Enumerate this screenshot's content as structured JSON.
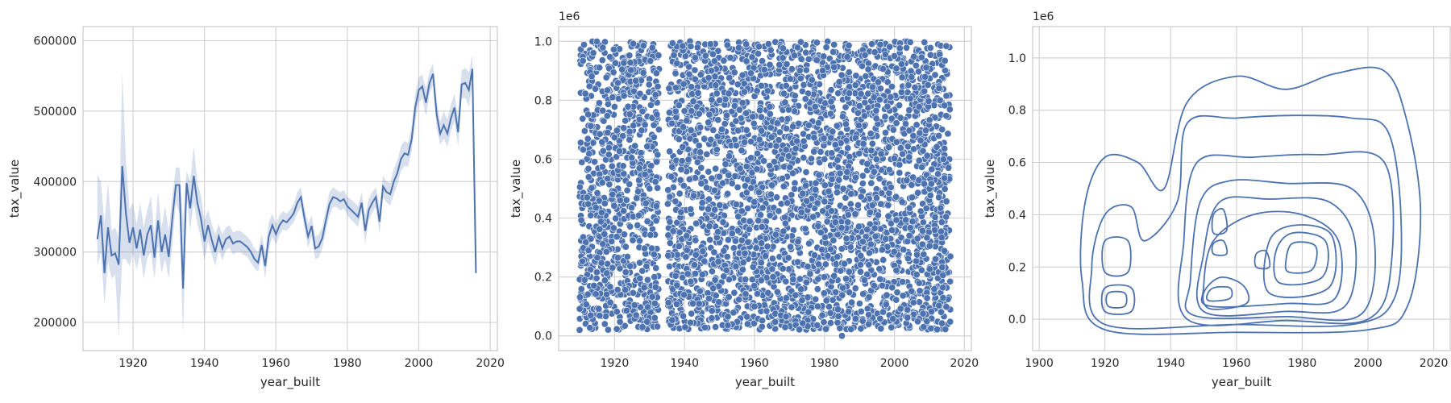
{
  "chart_data": [
    {
      "type": "line",
      "xlabel": "year_built",
      "ylabel": "tax_value",
      "xlim": [
        1906,
        2022
      ],
      "ylim": [
        160000,
        620000
      ],
      "xticks": [
        1920,
        1940,
        1960,
        1980,
        2000,
        2020
      ],
      "yticks": [
        200000,
        300000,
        400000,
        500000,
        600000
      ],
      "x_tick_labels": [
        "1920",
        "1940",
        "1960",
        "1980",
        "2000",
        "2020"
      ],
      "y_tick_labels": [
        "200000",
        "300000",
        "400000",
        "500000",
        "600000"
      ],
      "grid": true,
      "line_color": "#4c72b0",
      "band_color": "#4c72b0",
      "series": [
        {
          "x": [
            1910,
            1911,
            1912,
            1913,
            1914,
            1915,
            1916,
            1917,
            1918,
            1919,
            1920,
            1921,
            1922,
            1923,
            1924,
            1925,
            1926,
            1927,
            1928,
            1929,
            1930,
            1931,
            1932,
            1933,
            1934,
            1935,
            1936,
            1937,
            1938,
            1939,
            1940,
            1941,
            1942,
            1943,
            1944,
            1945,
            1946,
            1947,
            1948,
            1949,
            1950,
            1951,
            1952,
            1953,
            1954,
            1955,
            1956,
            1957,
            1958,
            1959,
            1960,
            1961,
            1962,
            1963,
            1964,
            1965,
            1966,
            1967,
            1968,
            1969,
            1970,
            1971,
            1972,
            1973,
            1974,
            1975,
            1976,
            1977,
            1978,
            1979,
            1980,
            1981,
            1982,
            1983,
            1984,
            1985,
            1986,
            1987,
            1988,
            1989,
            1990,
            1991,
            1992,
            1993,
            1994,
            1995,
            1996,
            1997,
            1998,
            1999,
            2000,
            2001,
            2002,
            2003,
            2004,
            2005,
            2006,
            2007,
            2008,
            2009,
            2010,
            2011,
            2012,
            2013,
            2014,
            2015,
            2016
          ],
          "y": [
            318000,
            352000,
            270000,
            335000,
            295000,
            298000,
            282000,
            422000,
            355000,
            313000,
            335000,
            305000,
            332000,
            295000,
            325000,
            338000,
            292000,
            345000,
            300000,
            325000,
            293000,
            348000,
            395000,
            395000,
            248000,
            398000,
            362000,
            408000,
            370000,
            348000,
            315000,
            338000,
            318000,
            300000,
            322000,
            305000,
            318000,
            322000,
            312000,
            315000,
            315000,
            311000,
            307000,
            300000,
            290000,
            285000,
            310000,
            280000,
            322000,
            338000,
            325000,
            338000,
            345000,
            342000,
            348000,
            355000,
            370000,
            378000,
            348000,
            322000,
            337000,
            305000,
            308000,
            320000,
            345000,
            368000,
            378000,
            376000,
            372000,
            375000,
            365000,
            360000,
            355000,
            350000,
            370000,
            330000,
            360000,
            370000,
            378000,
            343000,
            393000,
            385000,
            382000,
            400000,
            412000,
            432000,
            440000,
            438000,
            460000,
            505000,
            530000,
            535000,
            512000,
            540000,
            553000,
            495000,
            468000,
            480000,
            468000,
            490000,
            505000,
            470000,
            538000,
            540000,
            530000,
            560000,
            270000
          ],
          "upper": [
            410000,
            400000,
            340000,
            400000,
            330000,
            335000,
            320000,
            555000,
            430000,
            360000,
            370000,
            340000,
            370000,
            335000,
            360000,
            380000,
            325000,
            385000,
            335000,
            365000,
            330000,
            380000,
            420000,
            420000,
            345000,
            415000,
            400000,
            450000,
            400000,
            380000,
            345000,
            360000,
            340000,
            325000,
            340000,
            325000,
            335000,
            338000,
            328000,
            330000,
            330000,
            326000,
            322000,
            315000,
            305000,
            300000,
            325000,
            300000,
            342000,
            355000,
            340000,
            352000,
            358000,
            355000,
            360000,
            368000,
            385000,
            392000,
            362000,
            340000,
            352000,
            322000,
            325000,
            336000,
            360000,
            385000,
            392000,
            388000,
            385000,
            388000,
            378000,
            375000,
            370000,
            365000,
            385000,
            352000,
            376000,
            385000,
            392000,
            365000,
            408000,
            400000,
            398000,
            418000,
            430000,
            450000,
            458000,
            455000,
            478000,
            525000,
            548000,
            552000,
            532000,
            556000,
            568000,
            515000,
            485000,
            500000,
            488000,
            510000,
            525000,
            492000,
            558000,
            562000,
            555000,
            580000,
            275000
          ],
          "lower": [
            280000,
            300000,
            225000,
            285000,
            262000,
            268000,
            180000,
            290000,
            290000,
            280000,
            298000,
            275000,
            298000,
            262000,
            292000,
            300000,
            262000,
            310000,
            270000,
            290000,
            262000,
            310000,
            370000,
            355000,
            180000,
            380000,
            330000,
            370000,
            340000,
            320000,
            288000,
            315000,
            298000,
            280000,
            303000,
            288000,
            302000,
            306000,
            296000,
            300000,
            300000,
            296000,
            293000,
            285000,
            277000,
            272000,
            296000,
            262000,
            303000,
            322000,
            310000,
            324000,
            332000,
            330000,
            336000,
            342000,
            355000,
            364000,
            334000,
            306000,
            322000,
            290000,
            292000,
            305000,
            330000,
            352000,
            364000,
            364000,
            359000,
            362000,
            352000,
            346000,
            341000,
            336000,
            356000,
            312000,
            345000,
            356000,
            364000,
            325000,
            378000,
            370000,
            366000,
            382000,
            395000,
            415000,
            422000,
            421000,
            443000,
            485000,
            512000,
            518000,
            493000,
            524000,
            537000,
            476000,
            452000,
            461000,
            449000,
            471000,
            486000,
            449000,
            518000,
            519000,
            506000,
            538000,
            265000
          ]
        }
      ]
    },
    {
      "type": "scatter",
      "xlabel": "year_built",
      "ylabel": "tax_value",
      "offset_label": "1e6",
      "xlim": [
        1904,
        2022
      ],
      "ylim": [
        -0.05,
        1.05
      ],
      "xticks": [
        1920,
        1940,
        1960,
        1980,
        2000,
        2020
      ],
      "yticks": [
        0.0,
        0.2,
        0.4,
        0.6,
        0.8,
        1.0
      ],
      "x_tick_labels": [
        "1920",
        "1940",
        "1960",
        "1980",
        "2000",
        "2020"
      ],
      "y_tick_labels": [
        "0.0",
        "0.2",
        "0.4",
        "0.6",
        "0.8",
        "1.0"
      ],
      "grid": true,
      "point_color": "#4c72b0",
      "x_range": [
        1910,
        2016
      ],
      "y_range": [
        0.0,
        1.0
      ],
      "gap_year": 1934,
      "sample_points": [
        [
          1910,
          0.02
        ],
        [
          1930,
          0.5
        ],
        [
          1950,
          0.8
        ],
        [
          1960,
          0.1
        ],
        [
          1980,
          0.6
        ],
        [
          1985,
          0.0
        ],
        [
          2000,
          0.95
        ],
        [
          2016,
          0.27
        ]
      ]
    },
    {
      "type": "kde",
      "xlabel": "year_built",
      "ylabel": "tax_value",
      "offset_label": "1e6",
      "xlim": [
        1898,
        2025
      ],
      "ylim": [
        -0.12,
        1.12
      ],
      "xticks": [
        1900,
        1920,
        1940,
        1960,
        1980,
        2000,
        2020
      ],
      "yticks": [
        0.0,
        0.2,
        0.4,
        0.6,
        0.8,
        1.0
      ],
      "x_tick_labels": [
        "1900",
        "1920",
        "1940",
        "1960",
        "1980",
        "2000",
        "2020"
      ],
      "y_tick_labels": [
        "0.0",
        "0.2",
        "0.4",
        "0.6",
        "0.8",
        "1.0"
      ],
      "grid": true,
      "line_color": "#4c72b0",
      "contours": [
        [
          [
            1920,
            -0.04
          ],
          [
            1960,
            -0.05
          ],
          [
            2000,
            -0.04
          ],
          [
            2012,
            0.05
          ],
          [
            2016,
            0.4
          ],
          [
            2012,
            0.75
          ],
          [
            2005,
            0.95
          ],
          [
            1990,
            0.94
          ],
          [
            1975,
            0.88
          ],
          [
            1960,
            0.93
          ],
          [
            1945,
            0.83
          ],
          [
            1938,
            0.5
          ],
          [
            1930,
            0.6
          ],
          [
            1920,
            0.62
          ],
          [
            1914,
            0.45
          ],
          [
            1913,
            0.15
          ]
        ],
        [
          [
            1920,
            -0.02
          ],
          [
            1960,
            -0.02
          ],
          [
            1995,
            -0.02
          ],
          [
            2008,
            0.08
          ],
          [
            2010,
            0.4
          ],
          [
            2006,
            0.72
          ],
          [
            1995,
            0.77
          ],
          [
            1978,
            0.78
          ],
          [
            1960,
            0.77
          ],
          [
            1945,
            0.75
          ],
          [
            1942,
            0.45
          ],
          [
            1932,
            0.3
          ],
          [
            1928,
            0.43
          ],
          [
            1920,
            0.4
          ],
          [
            1916,
            0.2
          ]
        ],
        [
          [
            1945,
            0.0
          ],
          [
            1975,
            -0.005
          ],
          [
            2000,
            0.0
          ],
          [
            2007,
            0.2
          ],
          [
            2005,
            0.6
          ],
          [
            1985,
            0.63
          ],
          [
            1965,
            0.62
          ],
          [
            1948,
            0.6
          ],
          [
            1944,
            0.3
          ]
        ],
        [
          [
            1947,
            0.015
          ],
          [
            1975,
            0.01
          ],
          [
            1998,
            0.02
          ],
          [
            2002,
            0.3
          ],
          [
            1995,
            0.5
          ],
          [
            1975,
            0.52
          ],
          [
            1958,
            0.53
          ],
          [
            1949,
            0.45
          ],
          [
            1946,
            0.15
          ]
        ],
        [
          [
            1950,
            0.03
          ],
          [
            1975,
            0.03
          ],
          [
            1993,
            0.05
          ],
          [
            1996,
            0.3
          ],
          [
            1988,
            0.45
          ],
          [
            1970,
            0.46
          ],
          [
            1955,
            0.45
          ],
          [
            1950,
            0.25
          ]
        ],
        [
          [
            1952,
            0.05
          ],
          [
            1975,
            0.06
          ],
          [
            1990,
            0.08
          ],
          [
            1991,
            0.3
          ],
          [
            1980,
            0.4
          ],
          [
            1965,
            0.4
          ],
          [
            1953,
            0.3
          ],
          [
            1950,
            0.12
          ]
        ],
        [
          [
            1970,
            0.1
          ],
          [
            1988,
            0.12
          ],
          [
            1989,
            0.32
          ],
          [
            1978,
            0.36
          ],
          [
            1970,
            0.3
          ]
        ],
        [
          [
            1973,
            0.14
          ],
          [
            1986,
            0.16
          ],
          [
            1987,
            0.3
          ],
          [
            1977,
            0.33
          ],
          [
            1972,
            0.26
          ]
        ],
        [
          [
            1976,
            0.18
          ],
          [
            1983,
            0.19
          ],
          [
            1984,
            0.28
          ],
          [
            1977,
            0.29
          ],
          [
            1975,
            0.22
          ]
        ],
        [
          [
            1952,
            0.04
          ],
          [
            1963,
            0.06
          ],
          [
            1962,
            0.13
          ],
          [
            1955,
            0.16
          ],
          [
            1950,
            0.1
          ]
        ],
        [
          [
            1952,
            0.07
          ],
          [
            1958,
            0.08
          ],
          [
            1958,
            0.12
          ],
          [
            1953,
            0.12
          ],
          [
            1951,
            0.09
          ]
        ],
        [
          [
            1953,
            0.33
          ],
          [
            1957,
            0.34
          ],
          [
            1956,
            0.42
          ],
          [
            1953,
            0.4
          ]
        ],
        [
          [
            1953,
            0.25
          ],
          [
            1957,
            0.25
          ],
          [
            1956,
            0.3
          ],
          [
            1953,
            0.29
          ]
        ],
        [
          [
            1966,
            0.2
          ],
          [
            1970,
            0.2
          ],
          [
            1969,
            0.26
          ],
          [
            1966,
            0.25
          ]
        ],
        [
          [
            1920,
            0.03
          ],
          [
            1928,
            0.03
          ],
          [
            1928,
            0.12
          ],
          [
            1920,
            0.12
          ]
        ],
        [
          [
            1921,
            0.05
          ],
          [
            1926,
            0.05
          ],
          [
            1926,
            0.1
          ],
          [
            1921,
            0.1
          ]
        ],
        [
          [
            1920,
            0.18
          ],
          [
            1927,
            0.18
          ],
          [
            1927,
            0.3
          ],
          [
            1920,
            0.3
          ]
        ]
      ]
    }
  ]
}
